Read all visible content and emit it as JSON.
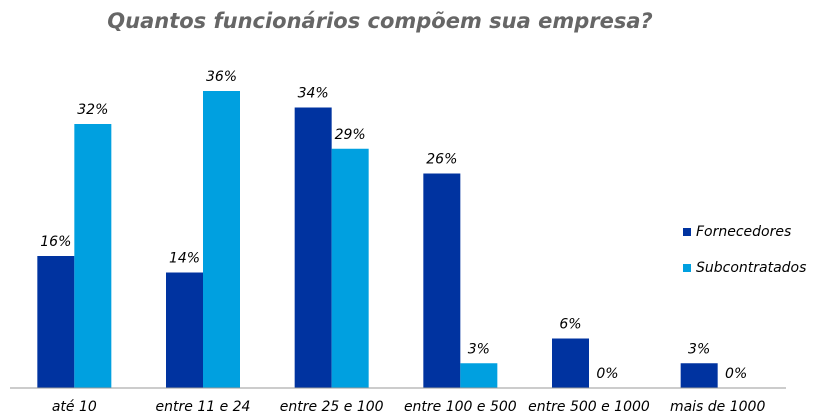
{
  "chart_data": {
    "type": "bar",
    "title": "Quantos funcionários compõem sua empresa?",
    "categories": [
      "até 10",
      "entre 11 e 24",
      "entre 25 e 100",
      "entre 100 e 500",
      "entre 500 e 1000",
      "mais de 1000"
    ],
    "series": [
      {
        "name": "Fornecedores",
        "color": "#0033a0",
        "values": [
          16,
          14,
          34,
          26,
          6,
          3
        ],
        "value_labels": [
          "16%",
          "14%",
          "34%",
          "26%",
          "6%",
          "3%"
        ]
      },
      {
        "name": "Subcontratados",
        "color": "#00a0e0",
        "values": [
          32,
          36,
          29,
          3,
          0,
          0
        ],
        "value_labels": [
          "32%",
          "36%",
          "29%",
          "3%",
          "0%",
          "0%"
        ]
      }
    ],
    "ylim": [
      0,
      36
    ],
    "legend": "right"
  }
}
